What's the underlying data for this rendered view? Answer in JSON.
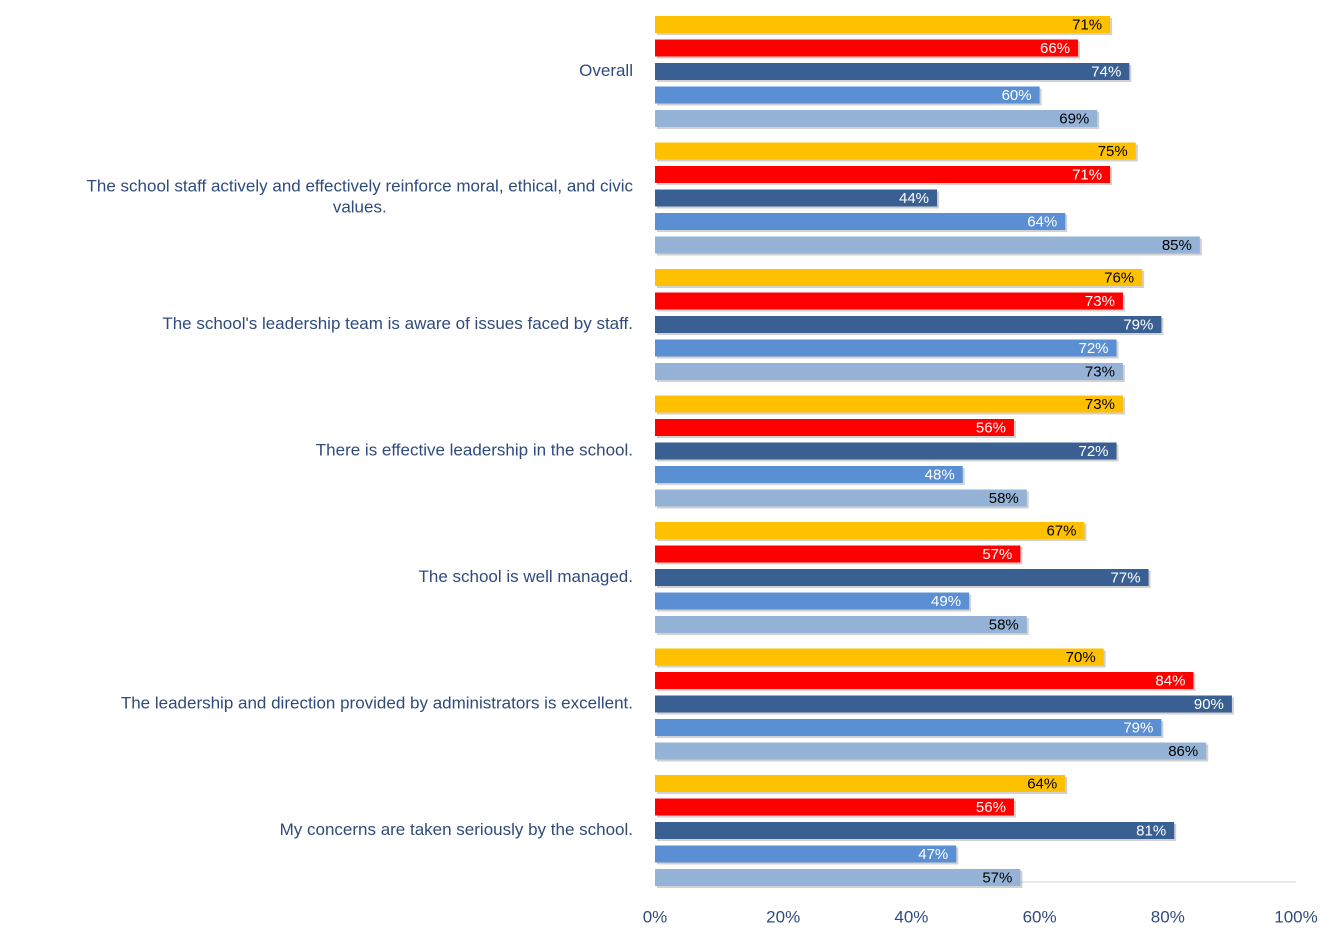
{
  "chart_data": {
    "type": "hbar",
    "categories": [
      "Overall",
      "The school staff actively and effectively reinforce moral, ethical, and civic values.",
      "The school's leadership team is aware of issues faced by staff.",
      "There is effective leadership in the school.",
      "The school is well managed.",
      "The leadership and direction provided by administrators is excellent.",
      "My concerns are taken seriously by the school."
    ],
    "series": [
      {
        "color": "#ffc000",
        "label_color": "#000000",
        "values": [
          71,
          75,
          76,
          73,
          67,
          70,
          64
        ],
        "value_labels": [
          "71%",
          "75%",
          "76%",
          "73%",
          "67%",
          "70%",
          "64%"
        ]
      },
      {
        "color": "#ff0000",
        "label_color": "#ffffff",
        "values": [
          66,
          71,
          73,
          56,
          57,
          84,
          56
        ],
        "value_labels": [
          "66%",
          "71%",
          "73%",
          "56%",
          "57%",
          "84%",
          "56%"
        ]
      },
      {
        "color": "#3a6093",
        "label_color": "#ffffff",
        "values": [
          74,
          44,
          79,
          72,
          77,
          90,
          81
        ],
        "value_labels": [
          "74%",
          "44%",
          "79%",
          "72%",
          "77%",
          "90%",
          "81%"
        ]
      },
      {
        "color": "#5b8fd4",
        "label_color": "#ffffff",
        "values": [
          60,
          64,
          72,
          48,
          49,
          79,
          47
        ],
        "value_labels": [
          "60%",
          "64%",
          "72%",
          "48%",
          "49%",
          "79%",
          "47%"
        ]
      },
      {
        "color": "#95b3d7",
        "label_color": "#000000",
        "values": [
          69,
          85,
          73,
          58,
          58,
          86,
          57
        ],
        "value_labels": [
          "69%",
          "85%",
          "73%",
          "58%",
          "58%",
          "86%",
          "57%"
        ]
      }
    ],
    "xlim": [
      0,
      100
    ],
    "xticks": [
      {
        "value": 0,
        "label": "0%"
      },
      {
        "value": 20,
        "label": "20%"
      },
      {
        "value": 40,
        "label": "40%"
      },
      {
        "value": 60,
        "label": "60%"
      },
      {
        "value": 80,
        "label": "80%"
      },
      {
        "value": 100,
        "label": "100%"
      }
    ]
  }
}
